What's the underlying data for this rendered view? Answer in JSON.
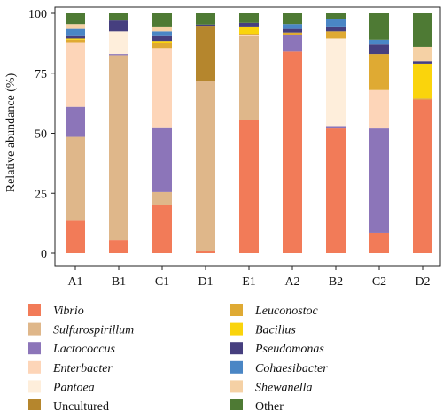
{
  "chart_data": {
    "type": "bar",
    "stacked": true,
    "ylabel": "Relative abundance (%)",
    "xlabel": "",
    "ylim": [
      0,
      100
    ],
    "yticks": [
      0,
      25,
      50,
      75,
      100
    ],
    "grid": false,
    "legend_position": "bottom",
    "categories": [
      "A1",
      "B1",
      "C1",
      "D1",
      "E1",
      "A2",
      "B2",
      "C2",
      "D2"
    ],
    "series": [
      {
        "name": "Vibrio",
        "italic": true,
        "color": "#F27B58",
        "values": [
          13.5,
          5.5,
          20,
          0.8,
          55.5,
          84,
          52,
          8.5,
          64
        ]
      },
      {
        "name": "Sulfurospirillum",
        "italic": true,
        "color": "#DFB78A",
        "values": [
          35,
          77,
          5.5,
          71,
          35,
          0,
          0,
          0,
          0
        ]
      },
      {
        "name": "Lactococcus",
        "italic": true,
        "color": "#8C75B9",
        "values": [
          12.5,
          0.5,
          27,
          0,
          0,
          7,
          1,
          43.5,
          0
        ]
      },
      {
        "name": "Enterbacter",
        "italic": true,
        "color": "#FDD5B8",
        "values": [
          27,
          0,
          33,
          0,
          0.5,
          0,
          0,
          16,
          0
        ]
      },
      {
        "name": "Pantoea",
        "italic": true,
        "color": "#FEEEDB",
        "values": [
          0,
          9.5,
          0,
          0,
          0,
          0,
          36.5,
          0,
          0
        ]
      },
      {
        "name": "Uncultured",
        "italic": false,
        "color": "#B5862D",
        "values": [
          0,
          0,
          0,
          23,
          0,
          0,
          0,
          0,
          0
        ]
      },
      {
        "name": "Leuconostoc",
        "italic": true,
        "color": "#DFAA33",
        "values": [
          1,
          0,
          2,
          0,
          0.5,
          1,
          3,
          15,
          0.5
        ]
      },
      {
        "name": "Bacillus",
        "italic": true,
        "color": "#FAD40C",
        "values": [
          0.5,
          0,
          1,
          0,
          3,
          0,
          0,
          0,
          14.5
        ]
      },
      {
        "name": "Pseudomonas",
        "italic": true,
        "color": "#463F7F",
        "values": [
          1,
          4.5,
          2,
          0.5,
          1.5,
          1.5,
          2,
          4,
          1
        ]
      },
      {
        "name": "Cohaesibacter",
        "italic": true,
        "color": "#4A86C5",
        "values": [
          3,
          0,
          2,
          0,
          0,
          2,
          3,
          2,
          0
        ]
      },
      {
        "name": "Shewanella",
        "italic": true,
        "color": "#F5D1A5",
        "values": [
          2,
          0,
          2,
          0,
          0,
          0,
          0,
          0,
          6
        ]
      },
      {
        "name": "Other",
        "italic": false,
        "color": "#4E7A34",
        "values": [
          4.5,
          3,
          5.5,
          4.7,
          4,
          4.5,
          2.5,
          11,
          14
        ]
      }
    ]
  }
}
